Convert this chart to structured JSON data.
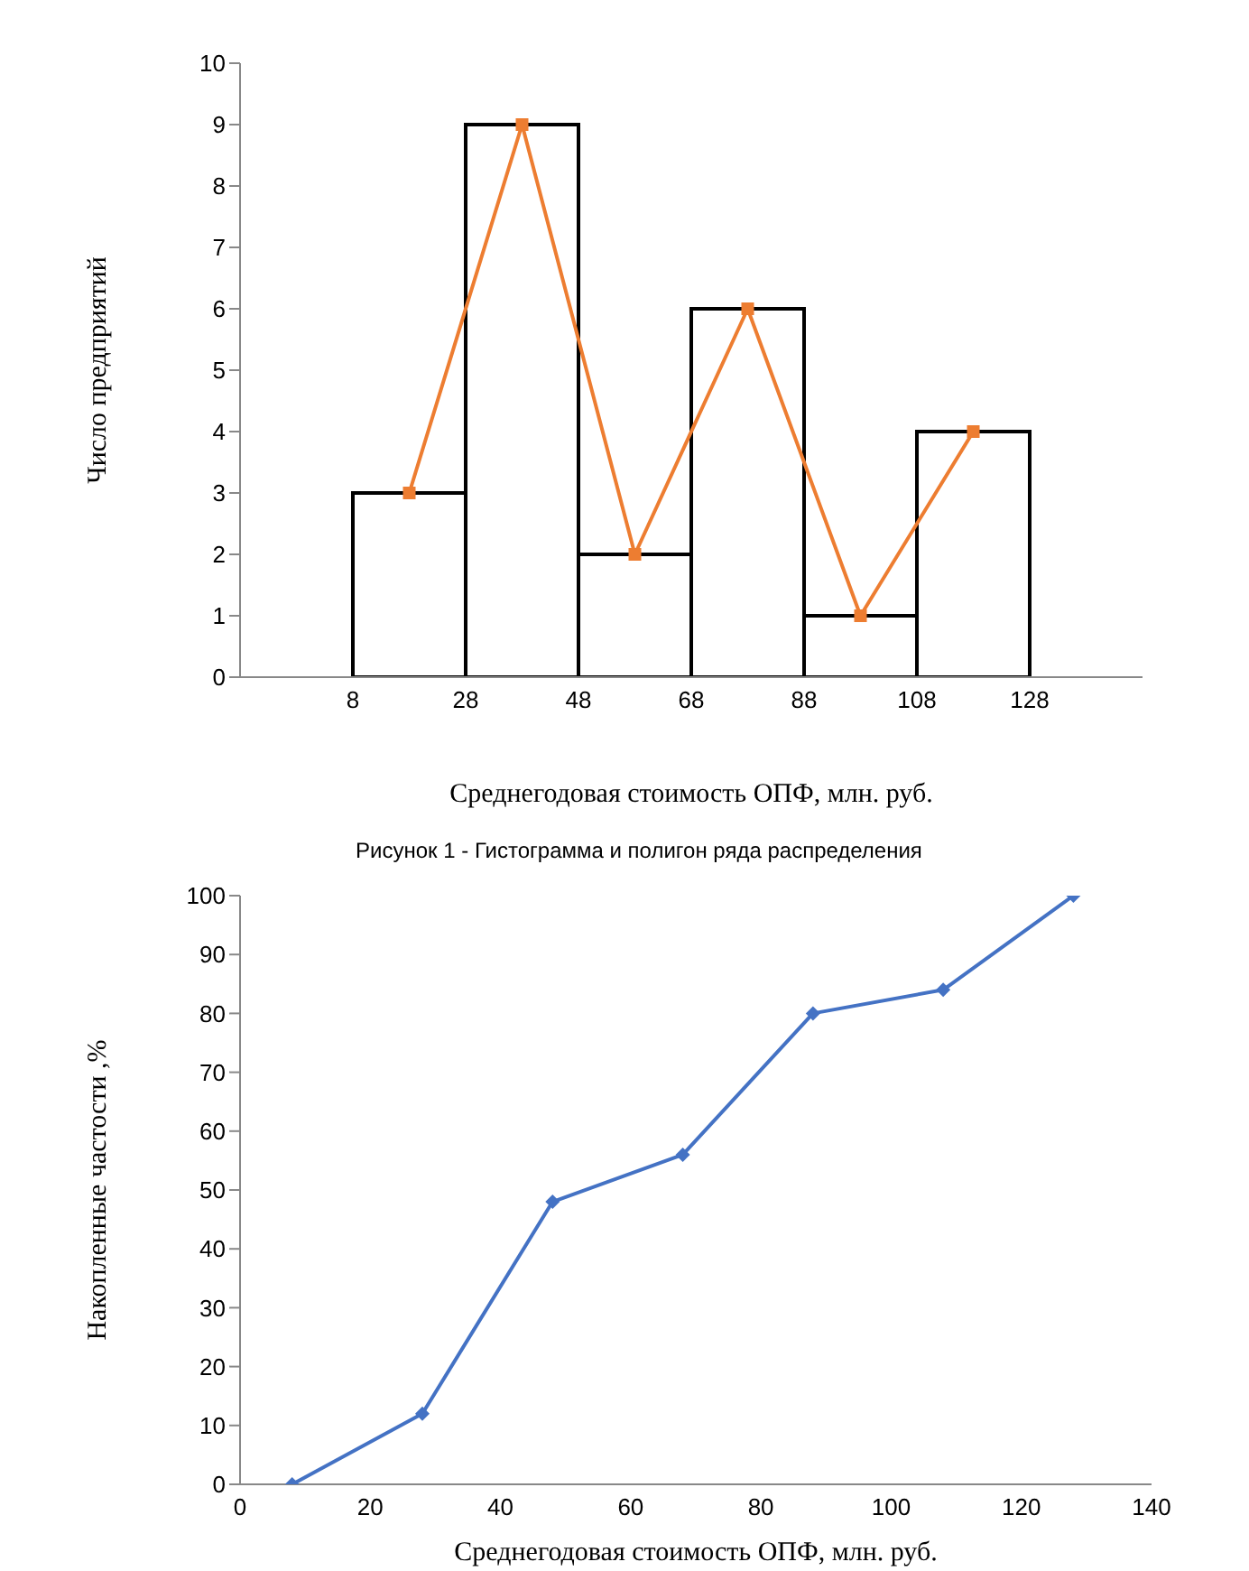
{
  "chart_data": [
    {
      "type": "histogram",
      "xlabel": "Среднегодовая стоимость ОПФ,  млн. руб.",
      "ylabel": "Число предприятий",
      "annotations": [
        "Рисунок 1 - Гистограмма и полигон ряда распределения"
      ],
      "xlim": [
        -12,
        148
      ],
      "xticks": [
        8,
        28,
        48,
        68,
        88,
        108,
        128
      ],
      "ylim": [
        0,
        10
      ],
      "yticks": [
        0,
        1,
        2,
        3,
        4,
        5,
        6,
        7,
        8,
        9,
        10
      ],
      "series": [
        {
          "bins": [
            8,
            28,
            48,
            68,
            88,
            108,
            128
          ],
          "values": [
            3,
            9,
            2,
            6,
            1,
            4
          ],
          "color": "#ffffff"
        },
        {
          "type": "line",
          "x": [
            18,
            38,
            58,
            78,
            98,
            118
          ],
          "values": [
            3,
            9,
            2,
            6,
            1,
            4
          ],
          "color": "#ed7d31",
          "marker": "square"
        }
      ]
    },
    {
      "type": "line",
      "xlabel": "Среднегодовая стоимость ОПФ,  млн. руб.",
      "ylabel": "Накопленные частости ,%",
      "xlim": [
        0,
        140
      ],
      "xticks": [
        0,
        20,
        40,
        60,
        80,
        100,
        120,
        140
      ],
      "ylim": [
        0,
        100
      ],
      "yticks": [
        0,
        10,
        20,
        30,
        40,
        50,
        60,
        70,
        80,
        90,
        100
      ],
      "series": [
        {
          "x": [
            8,
            28,
            48,
            68,
            88,
            108,
            128
          ],
          "values": [
            0,
            12,
            48,
            56,
            80,
            84,
            100
          ],
          "color": "#4472c4",
          "marker": "diamond"
        }
      ]
    }
  ]
}
